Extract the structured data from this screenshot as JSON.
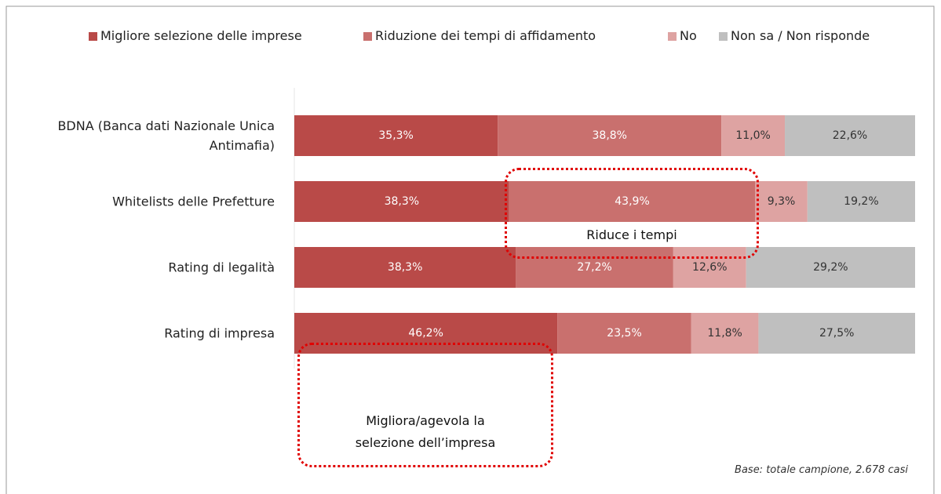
{
  "chart_data": {
    "type": "stacked-bar",
    "categories": [
      "BDNA (Banca dati Nazionale Unica Antimafia)",
      "Whitelists delle Prefetture",
      "Rating di legalità",
      "Rating di impresa"
    ],
    "series": [
      {
        "name": "Migliore selezione delle imprese",
        "color": "#b94a48",
        "values": [
          35.3,
          38.3,
          38.3,
          46.2
        ],
        "value_labels": [
          "35,3%",
          "38,3%",
          "38,3%",
          "46,2%"
        ]
      },
      {
        "name": "Riduzione dei tempi di affidamento",
        "color": "#c9706e",
        "values": [
          38.8,
          43.9,
          27.2,
          23.5
        ],
        "value_labels": [
          "38,8%",
          "43,9%",
          "27,2%",
          "23,5%"
        ]
      },
      {
        "name": "No",
        "color": "#dea3a2",
        "values": [
          11.0,
          9.3,
          12.6,
          11.8
        ],
        "value_labels": [
          "11,0%",
          "9,3%",
          "12,6%",
          "11,8%"
        ]
      },
      {
        "name": "Non sa / Non risponde",
        "color": "#bfbfbf",
        "values": [
          22.6,
          19.2,
          29.2,
          27.5
        ],
        "value_labels": [
          "22,6%",
          "19,2%",
          "29,2%",
          "27,5%"
        ]
      }
    ],
    "annotations": [
      "Riduce i tempi",
      "Migliora/agevola la selezione dell’impresa"
    ],
    "note": "Base: totale campione, 2.678 casi"
  }
}
